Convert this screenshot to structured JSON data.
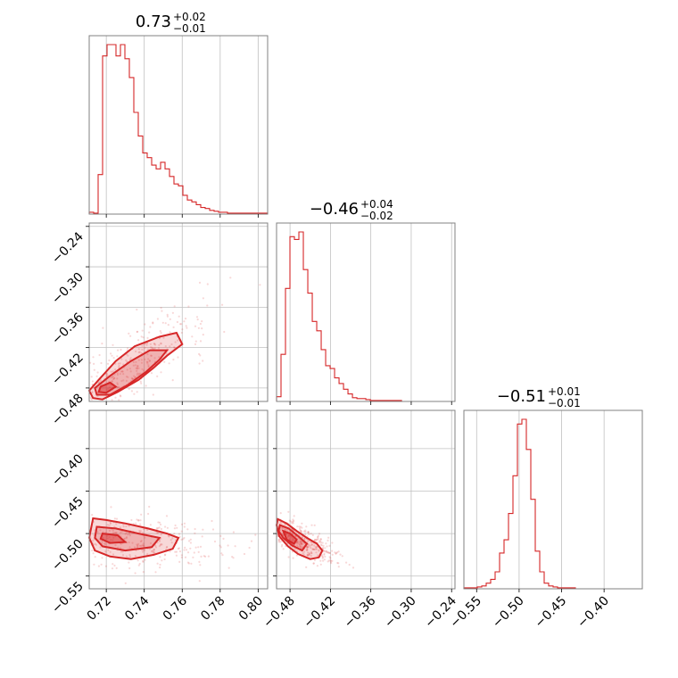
{
  "chart_data": {
    "type": "corner",
    "color": "#d62728",
    "params": [
      {
        "title": {
          "median": "0.73",
          "plus": "+0.02",
          "minus": "−0.01"
        },
        "range": [
          0.711,
          0.805
        ],
        "ticks": [
          {
            "v": 0.72,
            "label": "0.72"
          },
          {
            "v": 0.74,
            "label": "0.74"
          },
          {
            "v": 0.76,
            "label": "0.76"
          },
          {
            "v": 0.78,
            "label": "0.78"
          },
          {
            "v": 0.8,
            "label": "0.80"
          }
        ],
        "hist": {
          "edges_start": 0.711,
          "bin_width": 0.00235,
          "counts": [
            2,
            1,
            42,
            168,
            180,
            180,
            168,
            180,
            165,
            145,
            108,
            83,
            65,
            60,
            52,
            48,
            55,
            48,
            40,
            32,
            30,
            20,
            15,
            13,
            10,
            7,
            6,
            4,
            3,
            2,
            2,
            1,
            1,
            1,
            1,
            1,
            1,
            1,
            1,
            1
          ]
        }
      },
      {
        "title": {
          "median": "−0.46",
          "plus": "+0.04",
          "minus": "−0.02"
        },
        "range": [
          -0.5,
          -0.235
        ],
        "ticks": [
          {
            "v": -0.48,
            "label": "−0.48"
          },
          {
            "v": -0.42,
            "label": "−0.42"
          },
          {
            "v": -0.36,
            "label": "−0.36"
          },
          {
            "v": -0.3,
            "label": "−0.30"
          },
          {
            "v": -0.24,
            "label": "−0.24"
          }
        ],
        "hist": {
          "edges_start": -0.5,
          "bin_width": 0.00663,
          "counts": [
            5,
            50,
            120,
            175,
            172,
            180,
            140,
            115,
            85,
            75,
            55,
            38,
            35,
            25,
            19,
            13,
            8,
            4,
            3,
            3,
            2,
            1,
            1,
            1,
            1,
            1,
            1,
            1,
            0,
            0,
            0,
            0,
            0,
            0,
            0,
            0,
            0,
            0,
            0,
            0
          ]
        }
      },
      {
        "title": {
          "median": "−0.51",
          "plus": "+0.01",
          "minus": "−0.01"
        },
        "range": [
          -0.565,
          -0.355
        ],
        "ticks": [
          {
            "v": -0.55,
            "label": "−0.55"
          },
          {
            "v": -0.5,
            "label": "−0.50"
          },
          {
            "v": -0.45,
            "label": "−0.45"
          },
          {
            "v": -0.4,
            "label": "−0.40"
          }
        ],
        "hist": {
          "edges_start": -0.565,
          "bin_width": 0.00525,
          "counts": [
            1,
            1,
            1,
            2,
            3,
            6,
            10,
            18,
            38,
            52,
            80,
            120,
            175,
            180,
            148,
            95,
            40,
            18,
            6,
            3,
            2,
            1,
            1,
            1,
            1,
            0,
            0,
            0,
            0,
            0,
            0,
            0,
            0,
            0,
            0,
            0,
            0,
            0,
            0,
            0
          ]
        }
      }
    ],
    "pairs": [
      {
        "row": 1,
        "col": 0,
        "outer_contour": [
          [
            0.713,
            -0.495
          ],
          [
            0.718,
            -0.497
          ],
          [
            0.726,
            -0.486
          ],
          [
            0.737,
            -0.468
          ],
          [
            0.745,
            -0.45
          ],
          [
            0.752,
            -0.432
          ],
          [
            0.76,
            -0.415
          ],
          [
            0.757,
            -0.398
          ],
          [
            0.748,
            -0.404
          ],
          [
            0.735,
            -0.418
          ],
          [
            0.725,
            -0.44
          ],
          [
            0.716,
            -0.468
          ],
          [
            0.711,
            -0.484
          ]
        ],
        "mid_contour": [
          [
            0.715,
            -0.49
          ],
          [
            0.722,
            -0.49
          ],
          [
            0.731,
            -0.476
          ],
          [
            0.741,
            -0.456
          ],
          [
            0.748,
            -0.438
          ],
          [
            0.752,
            -0.424
          ],
          [
            0.743,
            -0.424
          ],
          [
            0.733,
            -0.44
          ],
          [
            0.722,
            -0.462
          ],
          [
            0.714,
            -0.48
          ]
        ],
        "inner_contour": [
          [
            0.716,
            -0.486
          ],
          [
            0.72,
            -0.487
          ],
          [
            0.725,
            -0.478
          ],
          [
            0.722,
            -0.472
          ],
          [
            0.717,
            -0.478
          ]
        ],
        "cloud_center": [
          0.73,
          -0.455
        ],
        "cloud_extent": [
          0.025,
          0.055
        ],
        "cloud_corr": 0.85
      },
      {
        "row": 2,
        "col": 0,
        "outer_contour": [
          [
            0.713,
            -0.482
          ],
          [
            0.72,
            -0.484
          ],
          [
            0.73,
            -0.488
          ],
          [
            0.742,
            -0.494
          ],
          [
            0.752,
            -0.5
          ],
          [
            0.758,
            -0.505
          ],
          [
            0.755,
            -0.518
          ],
          [
            0.745,
            -0.525
          ],
          [
            0.733,
            -0.53
          ],
          [
            0.722,
            -0.527
          ],
          [
            0.714,
            -0.52
          ],
          [
            0.711,
            -0.505
          ]
        ],
        "mid_contour": [
          [
            0.715,
            -0.492
          ],
          [
            0.725,
            -0.494
          ],
          [
            0.737,
            -0.5
          ],
          [
            0.748,
            -0.505
          ],
          [
            0.744,
            -0.516
          ],
          [
            0.73,
            -0.52
          ],
          [
            0.718,
            -0.515
          ],
          [
            0.714,
            -0.505
          ]
        ],
        "inner_contour": [
          [
            0.718,
            -0.5
          ],
          [
            0.726,
            -0.502
          ],
          [
            0.73,
            -0.51
          ],
          [
            0.722,
            -0.511
          ],
          [
            0.717,
            -0.506
          ]
        ],
        "cloud_center": [
          0.73,
          -0.508
        ],
        "cloud_extent": [
          0.028,
          0.018
        ],
        "cloud_corr": -0.2
      },
      {
        "row": 2,
        "col": 1,
        "outer_contour": [
          [
            -0.498,
            -0.483
          ],
          [
            -0.485,
            -0.488
          ],
          [
            -0.47,
            -0.497
          ],
          [
            -0.455,
            -0.505
          ],
          [
            -0.44,
            -0.512
          ],
          [
            -0.432,
            -0.52
          ],
          [
            -0.437,
            -0.528
          ],
          [
            -0.45,
            -0.53
          ],
          [
            -0.468,
            -0.524
          ],
          [
            -0.483,
            -0.515
          ],
          [
            -0.496,
            -0.503
          ],
          [
            -0.5,
            -0.49
          ]
        ],
        "mid_contour": [
          [
            -0.495,
            -0.49
          ],
          [
            -0.482,
            -0.494
          ],
          [
            -0.468,
            -0.503
          ],
          [
            -0.455,
            -0.512
          ],
          [
            -0.462,
            -0.52
          ],
          [
            -0.477,
            -0.514
          ],
          [
            -0.49,
            -0.505
          ],
          [
            -0.497,
            -0.497
          ]
        ],
        "inner_contour": [
          [
            -0.49,
            -0.497
          ],
          [
            -0.48,
            -0.5
          ],
          [
            -0.47,
            -0.507
          ],
          [
            -0.474,
            -0.512
          ],
          [
            -0.485,
            -0.507
          ]
        ],
        "cloud_center": [
          -0.465,
          -0.508
        ],
        "cloud_extent": [
          0.03,
          0.015
        ],
        "cloud_corr": -0.75
      }
    ],
    "grid": "on"
  }
}
